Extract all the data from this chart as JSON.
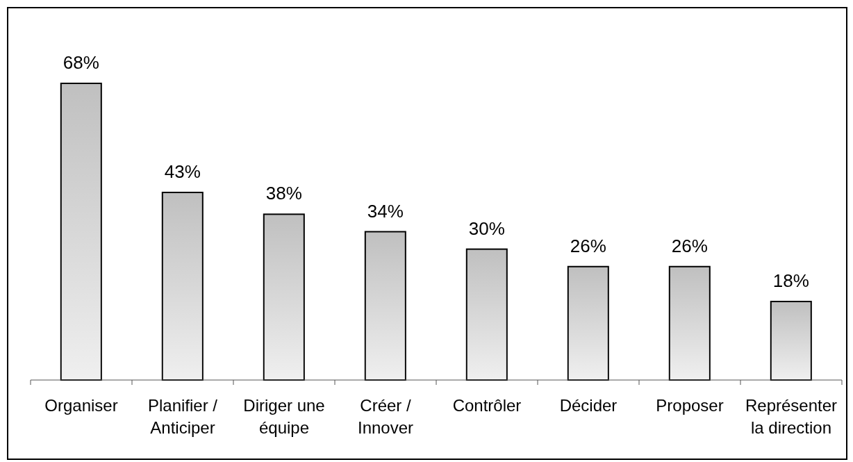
{
  "chart_data": {
    "type": "bar",
    "categories": [
      "Organiser",
      "Planifier / Anticiper",
      "Diriger une équipe",
      "Créer / Innover",
      "Contrôler",
      "Décider",
      "Proposer",
      "Représenter la direction"
    ],
    "values": [
      68,
      43,
      38,
      34,
      30,
      26,
      26,
      18
    ],
    "value_labels": [
      "68%",
      "43%",
      "38%",
      "34%",
      "30%",
      "26%",
      "26%",
      "18%"
    ],
    "color": "#c0c0c0"
  }
}
